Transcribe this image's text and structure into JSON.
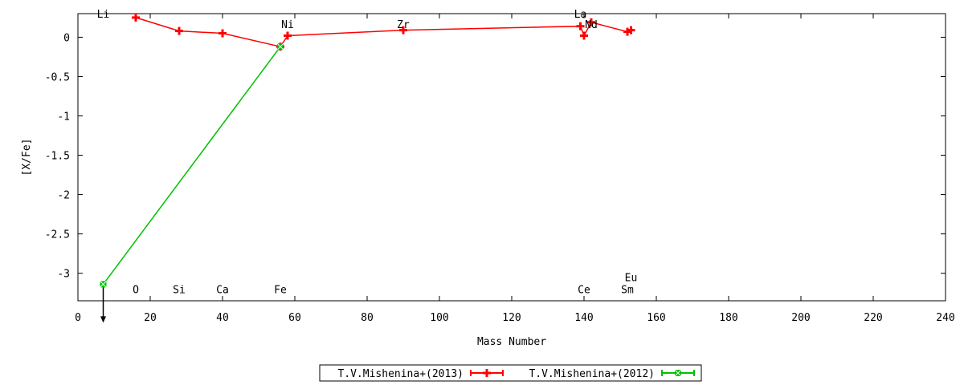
{
  "chart_data": {
    "type": "line",
    "title": "",
    "xlabel": "Mass Number",
    "ylabel": "[X/Fe]",
    "xlim": [
      0,
      240
    ],
    "ylim": [
      -3.35,
      0.3
    ],
    "xticks": [
      "0",
      "20",
      "40",
      "60",
      "80",
      "100",
      "120",
      "140",
      "160",
      "180",
      "200",
      "220",
      "240"
    ],
    "yticks": [
      {
        "v": 0,
        "t": "0"
      },
      {
        "v": -0.5,
        "t": "-0.5"
      },
      {
        "v": -1,
        "t": "-1"
      },
      {
        "v": -1.5,
        "t": "-1.5"
      },
      {
        "v": -2,
        "t": "-2"
      },
      {
        "v": -2.5,
        "t": "-2.5"
      },
      {
        "v": -3,
        "t": "-3"
      }
    ],
    "grid": false,
    "legend_position": "bottom",
    "series": [
      {
        "name": "T.V.Mishenina+(2013)",
        "color": "#ff0000",
        "marker": "plus",
        "points": [
          {
            "x": 16,
            "y": 0.25
          },
          {
            "x": 28,
            "y": 0.08
          },
          {
            "x": 40,
            "y": 0.05
          },
          {
            "x": 56,
            "y": -0.12
          },
          {
            "x": 58,
            "y": 0.02
          },
          {
            "x": 90,
            "y": 0.09
          },
          {
            "x": 139,
            "y": 0.14
          },
          {
            "x": 140,
            "y": 0.02
          },
          {
            "x": 142,
            "y": 0.19
          },
          {
            "x": 152,
            "y": 0.07
          },
          {
            "x": 153,
            "y": 0.09
          }
        ]
      },
      {
        "name": "T.V.Mishenina+(2012)",
        "color": "#00c000",
        "marker": "box",
        "points": [
          {
            "x": 7,
            "y": -3.14
          },
          {
            "x": 56,
            "y": -0.12
          }
        ],
        "upper_limit_x": 7
      }
    ],
    "element_labels": [
      {
        "text": "Li",
        "x": 7,
        "y": 0.3
      },
      {
        "text": "O",
        "x": 16,
        "y": -3.2
      },
      {
        "text": "Si",
        "x": 28,
        "y": -3.2
      },
      {
        "text": "Ca",
        "x": 40,
        "y": -3.2
      },
      {
        "text": "Fe",
        "x": 56,
        "y": -3.2
      },
      {
        "text": "Ni",
        "x": 58,
        "y": 0.17
      },
      {
        "text": "Zr",
        "x": 90,
        "y": 0.17
      },
      {
        "text": "La",
        "x": 139,
        "y": 0.3
      },
      {
        "text": "Nd",
        "x": 142,
        "y": 0.17
      },
      {
        "text": "Ce",
        "x": 140,
        "y": -3.2
      },
      {
        "text": "Eu",
        "x": 153,
        "y": -3.05
      },
      {
        "text": "Sm",
        "x": 152,
        "y": -3.2
      }
    ]
  }
}
